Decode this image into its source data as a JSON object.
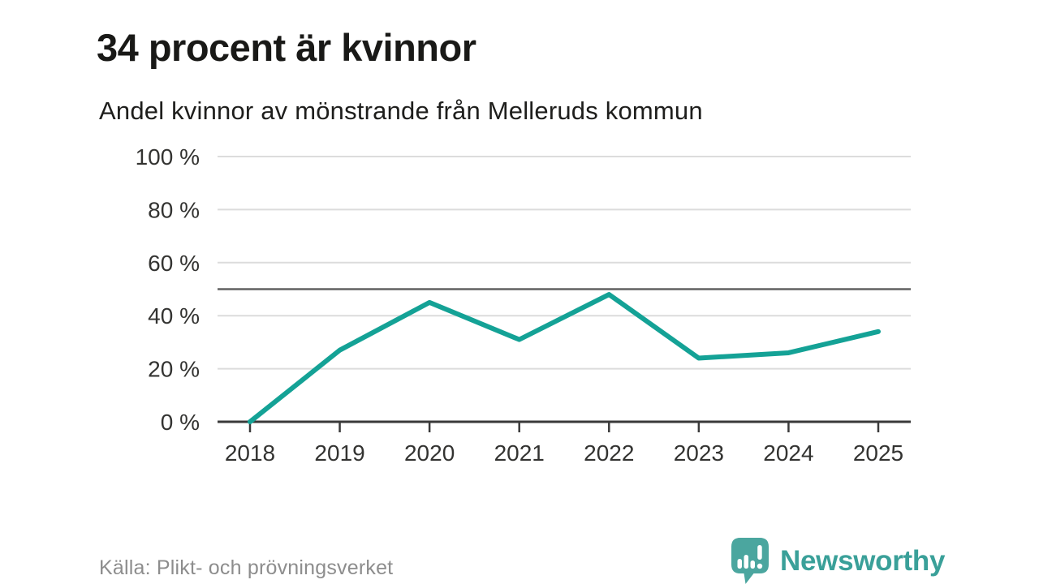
{
  "header": {
    "title": "34 procent är kvinnor",
    "subtitle": "Andel kvinnor av mönstrande från Melleruds kommun"
  },
  "chart_data": {
    "type": "line",
    "title": "34 procent är kvinnor",
    "subtitle": "Andel kvinnor av mönstrande från Melleruds kommun",
    "categories": [
      "2018",
      "2019",
      "2020",
      "2021",
      "2022",
      "2023",
      "2024",
      "2025"
    ],
    "series": [
      {
        "name": "Andel kvinnor av mönstrande",
        "values": [
          0,
          27,
          45,
          31,
          48,
          24,
          26,
          34
        ]
      }
    ],
    "unit": "%",
    "xlabel": "",
    "ylabel": "",
    "ylim": [
      0,
      100
    ],
    "y_ticks": [
      0,
      20,
      40,
      60,
      80,
      100
    ],
    "y_tick_suffix": " %",
    "reference_line": 50,
    "grid": true,
    "legend": "none"
  },
  "footer": {
    "source": "Källa: Plikt- och prövningsverket",
    "brand": "Newsworthy"
  },
  "colors": {
    "line": "#14a296",
    "grid": "#dcdcdc",
    "reference": "#616161",
    "axis": "#3a3a3a",
    "tick_text": "#333331",
    "brand_teal": "#3aa099",
    "icon_teal": "#4ba69f",
    "muted_text": "#8d8d8d"
  }
}
